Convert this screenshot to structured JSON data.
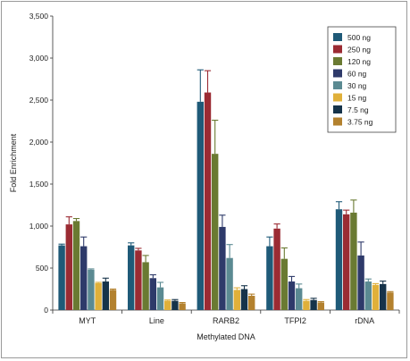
{
  "chart_data": {
    "type": "bar",
    "title": "",
    "xlabel": "Methylated DNA",
    "ylabel": "Fold Enrichment",
    "ylim": [
      0,
      3500
    ],
    "yticks": [
      "0",
      "500",
      "1,000",
      "1,500",
      "2,000",
      "2,500",
      "3,000",
      "3,500"
    ],
    "categories": [
      "MYT",
      "Line",
      "RARB2",
      "TFPI2",
      "rDNA"
    ],
    "grid": false,
    "legend_position": "top-right",
    "series": [
      {
        "name": "500 ng",
        "color": "#1f5a78",
        "values": [
          770,
          770,
          2480,
          760,
          1200
        ],
        "errors": [
          15,
          30,
          380,
          110,
          90
        ]
      },
      {
        "name": "250 ng",
        "color": "#9b2b33",
        "values": [
          1020,
          710,
          2590,
          970,
          1140
        ],
        "errors": [
          90,
          25,
          260,
          55,
          50
        ]
      },
      {
        "name": "120 ng",
        "color": "#6a7a32",
        "values": [
          1060,
          570,
          1860,
          610,
          1160
        ],
        "errors": [
          30,
          80,
          400,
          130,
          150
        ]
      },
      {
        "name": "60 ng",
        "color": "#2e3a6a",
        "values": [
          760,
          380,
          990,
          340,
          650
        ],
        "errors": [
          110,
          40,
          140,
          60,
          160
        ]
      },
      {
        "name": "30 ng",
        "color": "#5b8a92",
        "values": [
          480,
          270,
          620,
          260,
          340
        ],
        "errors": [
          10,
          60,
          160,
          50,
          30
        ]
      },
      {
        "name": "15 ng",
        "color": "#e0b03a",
        "values": [
          320,
          110,
          240,
          110,
          300
        ],
        "errors": [
          10,
          10,
          25,
          15,
          15
        ]
      },
      {
        "name": "7.5 ng",
        "color": "#16334a",
        "values": [
          340,
          110,
          250,
          120,
          310
        ],
        "errors": [
          40,
          15,
          40,
          20,
          35
        ]
      },
      {
        "name": "3.75 ng",
        "color": "#b3812e",
        "values": [
          240,
          80,
          170,
          90,
          210
        ],
        "errors": [
          10,
          10,
          20,
          10,
          10
        ]
      }
    ]
  }
}
